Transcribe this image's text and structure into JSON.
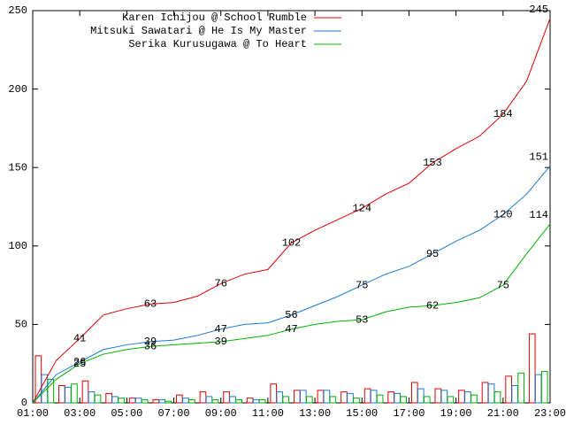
{
  "chart_data": [
    {
      "type": "line",
      "x": [
        1,
        2,
        3,
        4,
        5,
        6,
        7,
        8,
        9,
        10,
        11,
        12,
        13,
        14,
        15,
        16,
        17,
        18,
        19,
        20,
        21,
        22,
        23
      ],
      "series": [
        {
          "name": "Karen Ichijou @ School Rumble",
          "color": "#e00000",
          "values": [
            0,
            27,
            41,
            56,
            60,
            63,
            64,
            68,
            76,
            82,
            85,
            102,
            110,
            117,
            124,
            133,
            140,
            153,
            162,
            170,
            184,
            205,
            245
          ],
          "annotations": [
            {
              "x": 3,
              "value": 41
            },
            {
              "x": 6,
              "value": 63
            },
            {
              "x": 9,
              "value": 76
            },
            {
              "x": 12,
              "value": 102
            },
            {
              "x": 15,
              "value": 124
            },
            {
              "x": 18,
              "value": 153
            },
            {
              "x": 21,
              "value": 184
            },
            {
              "x": 23,
              "value": 245
            }
          ]
        },
        {
          "name": "Mitsuki Sawatari @ He Is My Master",
          "color": "#1a78d0",
          "values": [
            0,
            18,
            26,
            34,
            37,
            39,
            40,
            43,
            47,
            50,
            51,
            56,
            62,
            68,
            75,
            82,
            87,
            95,
            103,
            110,
            120,
            133,
            151
          ],
          "annotations": [
            {
              "x": 3,
              "value": 26
            },
            {
              "x": 6,
              "value": 39
            },
            {
              "x": 9,
              "value": 47
            },
            {
              "x": 12,
              "value": 56
            },
            {
              "x": 15,
              "value": 75
            },
            {
              "x": 18,
              "value": 95
            },
            {
              "x": 21,
              "value": 120
            },
            {
              "x": 23,
              "value": 151
            }
          ]
        },
        {
          "name": "Serika Kurusugawa @ To Heart",
          "color": "#00b000",
          "values": [
            0,
            15,
            25,
            31,
            34,
            36,
            37,
            38,
            39,
            41,
            43,
            47,
            50,
            52,
            53,
            58,
            61,
            62,
            64,
            67,
            75,
            95,
            114
          ],
          "annotations": [
            {
              "x": 3,
              "value": 25
            },
            {
              "x": 6,
              "value": 36
            },
            {
              "x": 9,
              "value": 39
            },
            {
              "x": 12,
              "value": 47
            },
            {
              "x": 15,
              "value": 53
            },
            {
              "x": 18,
              "value": 62
            },
            {
              "x": 21,
              "value": 75
            },
            {
              "x": 23,
              "value": 114
            }
          ]
        }
      ],
      "xlim": [
        1,
        23
      ],
      "xticks": [
        {
          "value": 1,
          "label": "01:00"
        },
        {
          "value": 3,
          "label": "03:00"
        },
        {
          "value": 5,
          "label": "05:00"
        },
        {
          "value": 7,
          "label": "07:00"
        },
        {
          "value": 9,
          "label": "09:00"
        },
        {
          "value": 11,
          "label": "11:00"
        },
        {
          "value": 13,
          "label": "13:00"
        },
        {
          "value": 15,
          "label": "15:00"
        },
        {
          "value": 17,
          "label": "17:00"
        },
        {
          "value": 19,
          "label": "19:00"
        },
        {
          "value": 21,
          "label": "21:00"
        },
        {
          "value": 23,
          "label": "23:00"
        }
      ],
      "ylim": [
        0,
        250
      ],
      "yticks": [
        0,
        50,
        100,
        150,
        200,
        250
      ],
      "legend": "top-left"
    },
    {
      "type": "bar",
      "x": [
        1,
        2,
        3,
        4,
        5,
        6,
        7,
        8,
        9,
        10,
        11,
        12,
        13,
        14,
        15,
        16,
        17,
        18,
        19,
        20,
        21,
        22
      ],
      "series": [
        {
          "color": "#e00000",
          "values": [
            30,
            11,
            14,
            6,
            3,
            2,
            5,
            7,
            7,
            3,
            12,
            8,
            8,
            7,
            9,
            7,
            13,
            9,
            8,
            13,
            17,
            44
          ]
        },
        {
          "color": "#1a78d0",
          "values": [
            18,
            10,
            7,
            4,
            3,
            2,
            3,
            4,
            4,
            2,
            7,
            8,
            8,
            6,
            8,
            6,
            9,
            8,
            7,
            12,
            11,
            18
          ]
        },
        {
          "color": "#00b000",
          "values": [
            15,
            12,
            5,
            3,
            2,
            1,
            2,
            2,
            2,
            2,
            4,
            4,
            4,
            3,
            5,
            4,
            4,
            4,
            5,
            7,
            19,
            20
          ]
        }
      ]
    }
  ]
}
